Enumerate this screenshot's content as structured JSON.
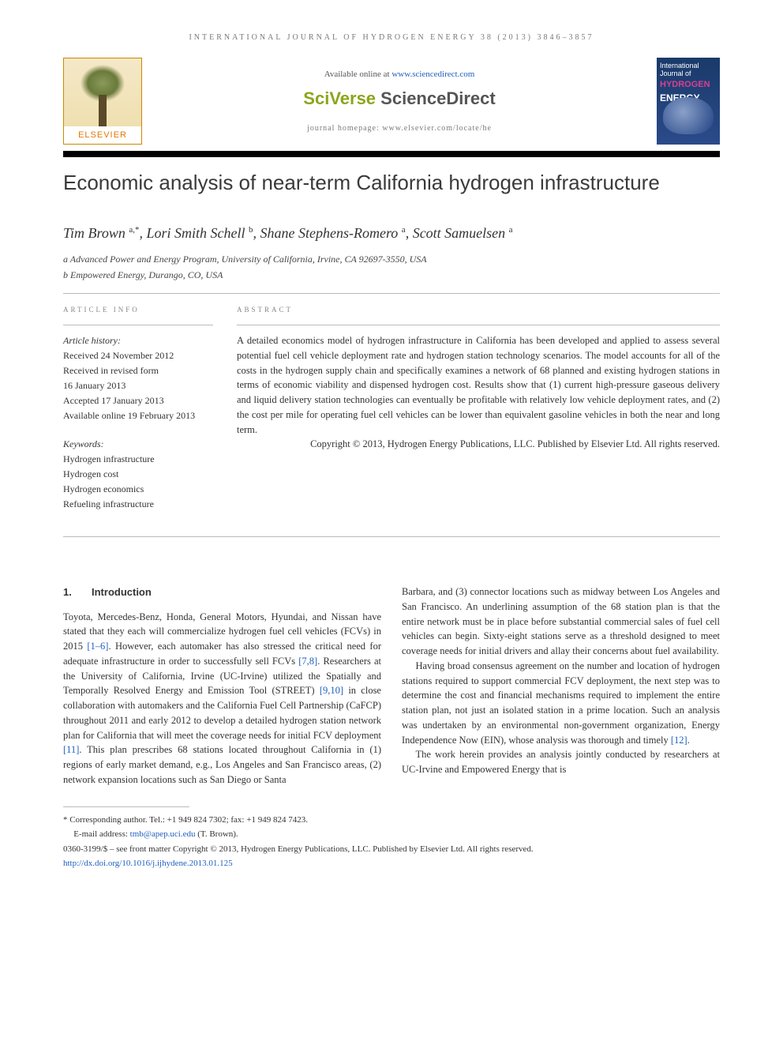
{
  "journal_header": "INTERNATIONAL JOURNAL OF HYDROGEN ENERGY 38 (2013) 3846–3857",
  "available_text": "Available online at ",
  "available_link": "www.sciencedirect.com",
  "sd_logo_sv": "SciVerse ",
  "sd_logo_sd": "ScienceDirect",
  "homepage_text": "journal homepage: www.elsevier.com/locate/he",
  "elsevier_name": "ELSEVIER",
  "cover": {
    "line1": "International Journal of",
    "hydrogen": "HYDROGEN",
    "energy": "ENERGY"
  },
  "title": "Economic analysis of near-term California hydrogen infrastructure",
  "authors_html": "Tim Brown|a,*|, Lori Smith Schell|b|, Shane Stephens-Romero|a|, Scott Samuelsen|a",
  "affiliations": {
    "a": "a Advanced Power and Energy Program, University of California, Irvine, CA 92697-3550, USA",
    "b": "b Empowered Energy, Durango, CO, USA"
  },
  "article_info_head": "ARTICLE INFO",
  "abstract_head": "ABSTRACT",
  "history_label": "Article history:",
  "history": {
    "received": "Received 24 November 2012",
    "revised1": "Received in revised form",
    "revised2": "16 January 2013",
    "accepted": "Accepted 17 January 2013",
    "online": "Available online 19 February 2013"
  },
  "keywords_label": "Keywords:",
  "keywords": [
    "Hydrogen infrastructure",
    "Hydrogen cost",
    "Hydrogen economics",
    "Refueling infrastructure"
  ],
  "abstract": "A detailed economics model of hydrogen infrastructure in California has been developed and applied to assess several potential fuel cell vehicle deployment rate and hydrogen station technology scenarios. The model accounts for all of the costs in the hydrogen supply chain and specifically examines a network of 68 planned and existing hydrogen stations in terms of economic viability and dispensed hydrogen cost. Results show that (1) current high-pressure gaseous delivery and liquid delivery station technologies can eventually be profitable with relatively low vehicle deployment rates, and (2) the cost per mile for operating fuel cell vehicles can be lower than equivalent gasoline vehicles in both the near and long term.",
  "copyright": "Copyright © 2013, Hydrogen Energy Publications, LLC. Published by Elsevier Ltd. All rights reserved.",
  "intro_head_num": "1.",
  "intro_head": "Introduction",
  "col1_p1a": "Toyota, Mercedes-Benz, Honda, General Motors, Hyundai, and Nissan have stated that they each will commercialize hydrogen fuel cell vehicles (FCVs) in 2015 ",
  "col1_ref1": "[1–6]",
  "col1_p1b": ". However, each automaker has also stressed the critical need for adequate infrastructure in order to successfully sell FCVs ",
  "col1_ref2": "[7,8]",
  "col1_p1c": ". Researchers at the University of California, Irvine (UC-Irvine) utilized the Spatially and Temporally Resolved Energy and Emission Tool (STREET) ",
  "col1_ref3": "[9,10]",
  "col1_p1d": " in close collaboration with automakers and the California Fuel Cell Partnership (CaFCP) throughout 2011 and early 2012 to develop a detailed hydrogen station network plan for California that will meet the coverage needs for initial FCV deployment ",
  "col1_ref4": "[11]",
  "col1_p1e": ". This plan prescribes 68 stations located throughout California in (1) regions of early market demand, e.g., Los Angeles and San Francisco areas, (2) network expansion locations such as San Diego or Santa",
  "col2_p1": "Barbara, and (3) connector locations such as midway between Los Angeles and San Francisco. An underlining assumption of the 68 station plan is that the entire network must be in place before substantial commercial sales of fuel cell vehicles can begin. Sixty-eight stations serve as a threshold designed to meet coverage needs for initial drivers and allay their concerns about fuel availability.",
  "col2_p2a": "Having broad consensus agreement on the number and location of hydrogen stations required to support commercial FCV deployment, the next step was to determine the cost and financial mechanisms required to implement the entire station plan, not just an isolated station in a prime location. Such an analysis was undertaken by an environmental non-government organization, Energy Independence Now (EIN), whose analysis was thorough and timely ",
  "col2_ref1": "[12]",
  "col2_p2b": ".",
  "col2_p3": "The work herein provides an analysis jointly conducted by researchers at UC-Irvine and Empowered Energy that is",
  "footnote_corr": "* Corresponding author. Tel.: +1 949 824 7302; fax: +1 949 824 7423.",
  "footnote_email_label": "E-mail address: ",
  "footnote_email": "tmb@apep.uci.edu",
  "footnote_email_tail": " (T. Brown).",
  "footnote_issn": "0360-3199/$ – see front matter Copyright © 2013, Hydrogen Energy Publications, LLC. Published by Elsevier Ltd. All rights reserved.",
  "footnote_doi": "http://dx.doi.org/10.1016/j.ijhydene.2013.01.125"
}
